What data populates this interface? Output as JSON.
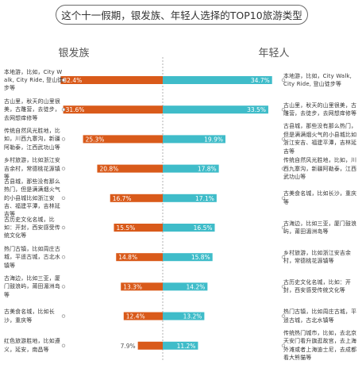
{
  "title": "这个十一假期，银发族、年轻人选择的TOP10旅游类型",
  "colors": {
    "silver": "#d95a1a",
    "young": "#3fbcc9",
    "axis": "#b0b0b0",
    "connector": "#9a9a9a"
  },
  "chart_data": {
    "type": "bar",
    "title": "这个十一假期，银发族、年轻人选择的TOP10旅游类型",
    "value_format": "percent",
    "xlim": [
      0,
      40
    ],
    "series": [
      {
        "name": "银发族",
        "categories": [
          "本地游，比如，City Walk, City Ride, 登山徒步等",
          "古山里，秋天的山里很美，古雕营，去徒步，去网想痒修等",
          "传统自然风光胜地，比如，川西九寨沟，新疆阿勒泰，江西武功山等",
          "乡村旅游，比如浙江安吉余村，常德桃花源镇等",
          "古县城，那些没有那么热门，但是满满烟火气的小县城比如浙江安吉、福建平潭，吉林延吉等",
          "古历史文化名城，比如：开封，西安感受传统文化等",
          "热门古镇，比如周庄古城，平遥古城，古北水镇等",
          "古海边，比如三亚，厦门鼓浪屿，莆田湄洲岛等",
          "古美食名城，比如长沙，重庆等",
          "红色旅游胜地，比如遵义，延安，南昌等"
        ],
        "values": [
          32.4,
          31.6,
          25.3,
          20.8,
          16.7,
          15.5,
          14.8,
          13.3,
          12.4,
          7.9
        ]
      },
      {
        "name": "年轻人",
        "categories": [
          "本地游，比如，City Walk, City Ride, 登山徒步等",
          "古山里，秋天的山里很美，古雕营，去徒步，去网想痒修等",
          "古县城，那些没有那么热门，但是满满烟火气的小县城比如浙江安吉、福建平潭，吉林延吉等",
          "传统自然风光胜地，比如，川西九寨沟，新疆阿勒泰，江西武功山等",
          "古美食名城，比如长沙，重庆等",
          "古海边，比如三亚，厦门鼓浪屿，莆田湄洲岛等",
          "乡村旅游，比如浙江安吉余村，常德桃花源镇等",
          "古历史文化名城，比如：开封，西安感受传统文化等",
          "热门古镇，比如周庄古城，平遥古城，古北水镇等",
          "传统热门城市，比如，去北京天安门看升旗逛故宫，去上海外滩或者上海迪士尼，去成都看大熊猫等"
        ],
        "values": [
          34.7,
          33.5,
          19.9,
          17.8,
          17.1,
          16.5,
          15.8,
          14.2,
          13.2,
          11.2
        ]
      }
    ]
  }
}
